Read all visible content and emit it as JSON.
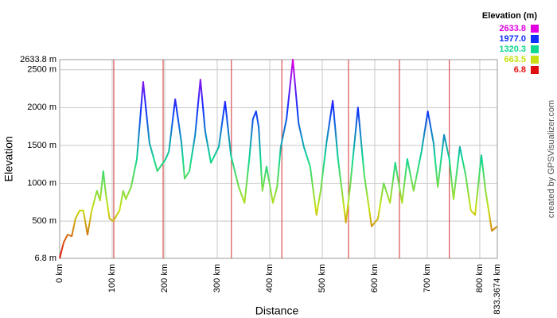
{
  "chart_data": {
    "type": "line",
    "xlabel": "Distance",
    "ylabel": "Elevation",
    "legend_title": "Elevation (m)",
    "color_scale": [
      {
        "value": 2633.8,
        "label": "2633.8",
        "color": "#e000e0"
      },
      {
        "value": 1977.0,
        "label": "1977.0",
        "color": "#1030ff"
      },
      {
        "value": 1320.3,
        "label": "1320.3",
        "color": "#10d890"
      },
      {
        "value": 663.5,
        "label": "663.5",
        "color": "#c8e010"
      },
      {
        "value": 6.8,
        "label": "6.8",
        "color": "#e01010"
      }
    ],
    "credit": "created by GPSVisualizer.com",
    "grid": true,
    "xlim": [
      0,
      833.3674
    ],
    "ylim": [
      6.8,
      2633.8
    ],
    "xticks": [
      {
        "value": 0,
        "label": "0 km"
      },
      {
        "value": 100,
        "label": "100 km"
      },
      {
        "value": 200,
        "label": "200 km"
      },
      {
        "value": 300,
        "label": "300 km"
      },
      {
        "value": 400,
        "label": "400 km"
      },
      {
        "value": 500,
        "label": "500 km"
      },
      {
        "value": 600,
        "label": "600 km"
      },
      {
        "value": 700,
        "label": "700 km"
      },
      {
        "value": 800,
        "label": "800 km"
      },
      {
        "value": 833.3674,
        "label": "833.3674 km"
      }
    ],
    "yticks": [
      {
        "value": 6.8,
        "label": "6.8 m"
      },
      {
        "value": 500,
        "label": "500 m"
      },
      {
        "value": 1000,
        "label": "1000 m"
      },
      {
        "value": 1500,
        "label": "1500 m"
      },
      {
        "value": 2000,
        "label": "2000 m"
      },
      {
        "value": 2500,
        "label": "2500 m"
      },
      {
        "value": 2633.8,
        "label": "2633.8 m"
      }
    ],
    "markers": {
      "color": "#d03030",
      "x": [
        103,
        197,
        327,
        423,
        550,
        647,
        742
      ]
    },
    "x": [
      0,
      7.6,
      15,
      23,
      30,
      38,
      45,
      53,
      61,
      71,
      77,
      83,
      88,
      95,
      102,
      114,
      121,
      126,
      136,
      147,
      159,
      171,
      186,
      202,
      208,
      220,
      232,
      238,
      247,
      258,
      268,
      277,
      288,
      303,
      315,
      326,
      341,
      352,
      361,
      368,
      374,
      379,
      386,
      394,
      406,
      414,
      421,
      432,
      444,
      455,
      465,
      477,
      489,
      497,
      508,
      520,
      530,
      545,
      553,
      568,
      580,
      594,
      606,
      617,
      629,
      639,
      652,
      662,
      674,
      689,
      701,
      712,
      720,
      732,
      742,
      750,
      762,
      773,
      783,
      791,
      803,
      811,
      823,
      833
    ],
    "values": [
      7,
      217,
      320,
      300,
      530,
      640,
      640,
      320,
      640,
      900,
      770,
      1160,
      850,
      530,
      500,
      640,
      900,
      790,
      950,
      1320,
      2340,
      1530,
      1160,
      1320,
      1420,
      2110,
      1530,
      1060,
      1160,
      1640,
      2370,
      1690,
      1270,
      1480,
      2080,
      1370,
      950,
      740,
      1320,
      1850,
      1950,
      1740,
      900,
      1220,
      740,
      950,
      1480,
      1850,
      2634,
      1790,
      1480,
      1220,
      580,
      900,
      1530,
      2090,
      1320,
      480,
      950,
      2000,
      1110,
      430,
      530,
      1000,
      740,
      1270,
      740,
      1320,
      900,
      1420,
      1950,
      1530,
      950,
      1640,
      1320,
      790,
      1480,
      1110,
      640,
      580,
      1370,
      900,
      370,
      430
    ]
  }
}
